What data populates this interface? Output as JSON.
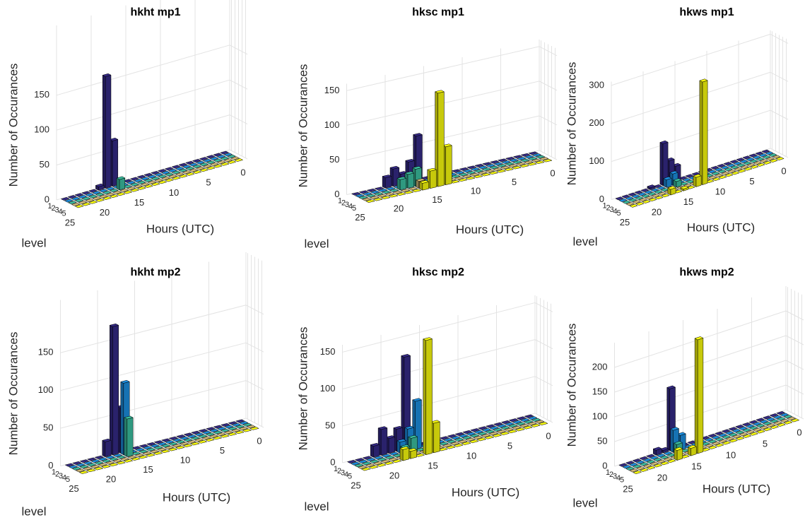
{
  "chart_data": [
    {
      "type": "bar3d",
      "title": "hkht mp1",
      "xlabel": "Hours (UTC)",
      "ylabel": "level",
      "zlabel": "Number of Occurances",
      "x": [
        1,
        2,
        3,
        4,
        5,
        6,
        7,
        8,
        9,
        10,
        11,
        12,
        13,
        14,
        15,
        16,
        17,
        18,
        19,
        20,
        21,
        22,
        23,
        24
      ],
      "xlim": [
        0,
        25
      ],
      "xticks": [
        0,
        5,
        10,
        15,
        20,
        25
      ],
      "ylim": [
        0.5,
        5.5
      ],
      "yticks": [
        1,
        2,
        3,
        4,
        5
      ],
      "zlim": [
        0,
        250
      ],
      "zticks": [
        0,
        50,
        100,
        150
      ],
      "grid": true,
      "series": [
        {
          "color": "#352a87",
          "values": [
            0,
            0,
            0,
            0,
            0,
            0,
            0,
            0,
            0,
            0,
            0,
            0,
            0,
            0,
            0,
            0,
            65,
            160,
            5,
            0,
            0,
            0,
            0,
            0
          ]
        },
        {
          "color": "#1c8ee0",
          "values": [
            0,
            0,
            0,
            0,
            0,
            0,
            0,
            0,
            0,
            0,
            0,
            0,
            0,
            0,
            0,
            0,
            0,
            0,
            0,
            0,
            0,
            0,
            0,
            0
          ]
        },
        {
          "color": "#3bbfa0",
          "values": [
            0,
            0,
            0,
            0,
            0,
            0,
            0,
            0,
            0,
            0,
            0,
            0,
            0,
            0,
            0,
            0,
            15,
            0,
            0,
            0,
            0,
            0,
            0,
            0
          ]
        },
        {
          "color": "#d4bb78",
          "values": [
            0,
            0,
            0,
            0,
            0,
            0,
            0,
            0,
            0,
            0,
            0,
            0,
            0,
            0,
            0,
            0,
            0,
            0,
            0,
            0,
            0,
            0,
            0,
            0
          ]
        },
        {
          "color": "#f9fb0e",
          "values": [
            0,
            0,
            0,
            0,
            0,
            0,
            0,
            0,
            0,
            0,
            0,
            0,
            0,
            0,
            0,
            0,
            0,
            0,
            0,
            0,
            0,
            0,
            0,
            0
          ]
        }
      ]
    },
    {
      "type": "bar3d",
      "title": "hksc mp1",
      "xlabel": "Hours (UTC)",
      "ylabel": "level",
      "zlabel": "Number of Occurances",
      "x": [
        1,
        2,
        3,
        4,
        5,
        6,
        7,
        8,
        9,
        10,
        11,
        12,
        13,
        14,
        15,
        16,
        17,
        18,
        19,
        20,
        21,
        22,
        23,
        24
      ],
      "xlim": [
        0,
        25
      ],
      "xticks": [
        0,
        5,
        10,
        15,
        20,
        25
      ],
      "ylim": [
        0.5,
        5.5
      ],
      "yticks": [
        1,
        2,
        3,
        4,
        5
      ],
      "zlim": [
        0,
        160
      ],
      "zticks": [
        0,
        50,
        100,
        150
      ],
      "grid": true,
      "series": [
        {
          "color": "#352a87",
          "values": [
            0,
            0,
            0,
            0,
            0,
            0,
            0,
            0,
            0,
            0,
            0,
            0,
            0,
            0,
            0,
            65,
            30,
            15,
            25,
            15,
            0,
            0,
            0,
            0
          ]
        },
        {
          "color": "#1c8ee0",
          "values": [
            0,
            0,
            0,
            0,
            0,
            0,
            0,
            0,
            0,
            0,
            0,
            0,
            0,
            0,
            0,
            0,
            10,
            10,
            0,
            0,
            0,
            0,
            0,
            0
          ]
        },
        {
          "color": "#3bbfa0",
          "values": [
            0,
            0,
            0,
            0,
            0,
            0,
            0,
            0,
            0,
            0,
            0,
            0,
            0,
            0,
            0,
            0,
            25,
            20,
            15,
            0,
            0,
            0,
            0,
            0
          ]
        },
        {
          "color": "#d4bb78",
          "values": [
            0,
            0,
            0,
            0,
            0,
            0,
            0,
            0,
            0,
            0,
            0,
            0,
            0,
            0,
            0,
            0,
            10,
            0,
            0,
            0,
            0,
            0,
            0,
            0
          ]
        },
        {
          "color": "#f9fb0e",
          "values": [
            0,
            0,
            0,
            0,
            0,
            0,
            0,
            0,
            0,
            0,
            0,
            0,
            0,
            55,
            135,
            25,
            10,
            0,
            0,
            0,
            0,
            0,
            0,
            0
          ]
        }
      ]
    },
    {
      "type": "bar3d",
      "title": "hkws mp1",
      "xlabel": "Hours (UTC)",
      "ylabel": "level",
      "zlabel": "Number of Occurances",
      "x": [
        1,
        2,
        3,
        4,
        5,
        6,
        7,
        8,
        9,
        10,
        11,
        12,
        13,
        14,
        15,
        16,
        17,
        18,
        19,
        20,
        21,
        22,
        23,
        24
      ],
      "xlim": [
        0,
        25
      ],
      "xticks": [
        0,
        5,
        10,
        15,
        20,
        25
      ],
      "ylim": [
        0.5,
        5.5
      ],
      "yticks": [
        1,
        2,
        3,
        4,
        5
      ],
      "zlim": [
        0,
        310
      ],
      "zticks": [
        0,
        100,
        200,
        300
      ],
      "grid": true,
      "series": [
        {
          "color": "#352a87",
          "values": [
            0,
            0,
            0,
            0,
            0,
            0,
            0,
            0,
            0,
            0,
            0,
            0,
            0,
            0,
            40,
            60,
            110,
            0,
            5,
            0,
            0,
            0,
            0,
            0
          ]
        },
        {
          "color": "#1c8ee0",
          "values": [
            0,
            0,
            0,
            0,
            0,
            0,
            0,
            0,
            0,
            0,
            0,
            0,
            0,
            0,
            0,
            30,
            20,
            0,
            0,
            0,
            0,
            0,
            0,
            0
          ]
        },
        {
          "color": "#3bbfa0",
          "values": [
            0,
            0,
            0,
            0,
            0,
            0,
            0,
            0,
            0,
            0,
            0,
            0,
            0,
            0,
            0,
            15,
            0,
            0,
            0,
            0,
            0,
            0,
            0,
            0
          ]
        },
        {
          "color": "#d4bb78",
          "values": [
            0,
            0,
            0,
            0,
            0,
            0,
            0,
            0,
            0,
            0,
            0,
            0,
            0,
            0,
            0,
            0,
            0,
            0,
            0,
            0,
            0,
            0,
            0,
            0
          ]
        },
        {
          "color": "#f9fb0e",
          "values": [
            0,
            0,
            0,
            0,
            0,
            0,
            0,
            0,
            0,
            0,
            0,
            0,
            270,
            25,
            0,
            5,
            0,
            15,
            0,
            0,
            0,
            0,
            0,
            0
          ]
        }
      ]
    },
    {
      "type": "bar3d",
      "title": "hkht mp2",
      "xlabel": "Hours (UTC)",
      "ylabel": "level",
      "zlabel": "Number of Occurances",
      "x": [
        1,
        2,
        3,
        4,
        5,
        6,
        7,
        8,
        9,
        10,
        11,
        12,
        13,
        14,
        15,
        16,
        17,
        18,
        19,
        20,
        21,
        22,
        23,
        24
      ],
      "xlim": [
        0,
        25
      ],
      "xticks": [
        0,
        5,
        10,
        15,
        20,
        25
      ],
      "ylim": [
        0.5,
        5.5
      ],
      "yticks": [
        1,
        2,
        3,
        4,
        5
      ],
      "zlim": [
        0,
        220
      ],
      "zticks": [
        0,
        50,
        100,
        150
      ],
      "grid": true,
      "series": [
        {
          "color": "#352a87",
          "values": [
            0,
            0,
            0,
            0,
            0,
            0,
            0,
            0,
            0,
            0,
            0,
            0,
            0,
            0,
            0,
            0,
            60,
            170,
            20,
            0,
            0,
            0,
            0,
            0
          ]
        },
        {
          "color": "#1c8ee0",
          "values": [
            0,
            0,
            0,
            0,
            0,
            0,
            0,
            0,
            0,
            0,
            0,
            0,
            0,
            0,
            0,
            0,
            95,
            0,
            0,
            0,
            0,
            0,
            0,
            0
          ]
        },
        {
          "color": "#3bbfa0",
          "values": [
            0,
            0,
            0,
            0,
            0,
            0,
            0,
            0,
            0,
            0,
            0,
            0,
            0,
            0,
            0,
            0,
            50,
            0,
            0,
            0,
            0,
            0,
            0,
            0
          ]
        },
        {
          "color": "#d4bb78",
          "values": [
            0,
            0,
            0,
            0,
            0,
            0,
            0,
            0,
            0,
            0,
            0,
            0,
            0,
            0,
            0,
            0,
            0,
            0,
            0,
            0,
            0,
            0,
            0,
            0
          ]
        },
        {
          "color": "#f9fb0e",
          "values": [
            0,
            0,
            0,
            0,
            0,
            0,
            0,
            0,
            0,
            0,
            0,
            0,
            0,
            0,
            0,
            0,
            0,
            0,
            0,
            0,
            0,
            0,
            0,
            0
          ]
        }
      ]
    },
    {
      "type": "bar3d",
      "title": "hksc mp2",
      "xlabel": "Hours (UTC)",
      "ylabel": "level",
      "zlabel": "Number of Occurances",
      "x": [
        1,
        2,
        3,
        4,
        5,
        6,
        7,
        8,
        9,
        10,
        11,
        12,
        13,
        14,
        15,
        16,
        17,
        18,
        19,
        20,
        21,
        22,
        23,
        24
      ],
      "xlim": [
        0,
        25
      ],
      "xticks": [
        0,
        5,
        10,
        15,
        20,
        25
      ],
      "ylim": [
        0.5,
        5.5
      ],
      "yticks": [
        1,
        2,
        3,
        4,
        5
      ],
      "zlim": [
        0,
        160
      ],
      "zticks": [
        0,
        50,
        100,
        150
      ],
      "grid": true,
      "series": [
        {
          "color": "#352a87",
          "values": [
            0,
            0,
            0,
            0,
            0,
            0,
            0,
            0,
            0,
            0,
            0,
            0,
            0,
            0,
            0,
            0,
            125,
            30,
            20,
            35,
            15,
            0,
            0,
            0
          ]
        },
        {
          "color": "#1c8ee0",
          "values": [
            0,
            0,
            0,
            0,
            0,
            0,
            0,
            0,
            0,
            0,
            0,
            0,
            0,
            0,
            0,
            65,
            30,
            15,
            0,
            0,
            0,
            0,
            0,
            0
          ]
        },
        {
          "color": "#3bbfa0",
          "values": [
            0,
            0,
            0,
            0,
            0,
            0,
            0,
            0,
            0,
            0,
            0,
            0,
            0,
            0,
            0,
            0,
            20,
            10,
            0,
            0,
            0,
            0,
            0,
            0
          ]
        },
        {
          "color": "#d4bb78",
          "values": [
            0,
            0,
            0,
            0,
            0,
            0,
            0,
            0,
            0,
            0,
            0,
            0,
            0,
            0,
            0,
            0,
            0,
            0,
            0,
            0,
            0,
            0,
            0,
            0
          ]
        },
        {
          "color": "#f9fb0e",
          "values": [
            0,
            0,
            0,
            0,
            0,
            0,
            0,
            0,
            0,
            0,
            0,
            0,
            0,
            0,
            40,
            155,
            0,
            10,
            15,
            0,
            0,
            0,
            0,
            0
          ]
        }
      ]
    },
    {
      "type": "bar3d",
      "title": "hkws mp2",
      "xlabel": "Hours (UTC)",
      "ylabel": "level",
      "zlabel": "Number of Occurances",
      "x": [
        1,
        2,
        3,
        4,
        5,
        6,
        7,
        8,
        9,
        10,
        11,
        12,
        13,
        14,
        15,
        16,
        17,
        18,
        19,
        20,
        21,
        22,
        23,
        24
      ],
      "xlim": [
        0,
        25
      ],
      "xticks": [
        0,
        5,
        10,
        15,
        20,
        25
      ],
      "ylim": [
        0.5,
        5.5
      ],
      "yticks": [
        1,
        2,
        3,
        4,
        5
      ],
      "zlim": [
        0,
        250
      ],
      "zticks": [
        0,
        50,
        100,
        150,
        200
      ],
      "grid": true,
      "series": [
        {
          "color": "#352a87",
          "values": [
            0,
            0,
            0,
            0,
            0,
            0,
            0,
            0,
            0,
            0,
            0,
            0,
            0,
            0,
            0,
            0,
            125,
            5,
            10,
            0,
            0,
            0,
            0,
            0
          ]
        },
        {
          "color": "#1c8ee0",
          "values": [
            0,
            0,
            0,
            0,
            0,
            0,
            0,
            0,
            0,
            0,
            0,
            0,
            0,
            0,
            0,
            30,
            45,
            0,
            0,
            0,
            0,
            0,
            0,
            0
          ]
        },
        {
          "color": "#3bbfa0",
          "values": [
            0,
            0,
            0,
            0,
            0,
            0,
            0,
            0,
            0,
            0,
            0,
            0,
            0,
            0,
            0,
            0,
            20,
            0,
            0,
            0,
            0,
            0,
            0,
            0
          ]
        },
        {
          "color": "#d4bb78",
          "values": [
            0,
            0,
            0,
            0,
            0,
            0,
            0,
            0,
            0,
            0,
            0,
            0,
            0,
            0,
            0,
            0,
            0,
            0,
            0,
            0,
            0,
            0,
            0,
            0
          ]
        },
        {
          "color": "#f9fb0e",
          "values": [
            0,
            0,
            0,
            0,
            0,
            0,
            0,
            0,
            0,
            0,
            0,
            0,
            0,
            0,
            230,
            15,
            0,
            20,
            0,
            0,
            0,
            0,
            0,
            0
          ]
        }
      ]
    }
  ]
}
